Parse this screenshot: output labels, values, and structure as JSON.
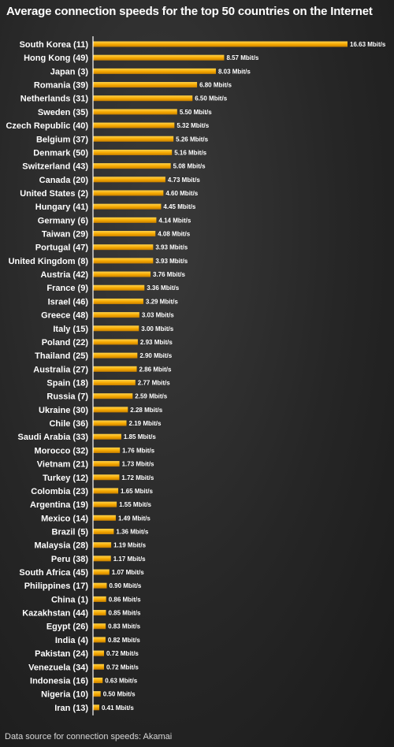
{
  "title": "Average connection speeds for the top 50 countries on the Internet",
  "source": "Data source for connection speeds: Akamai",
  "colors": {
    "bar": "#f5a800",
    "bar_highlight": "#ffd24a",
    "axis": "#ffffff",
    "text": "#ffffff"
  },
  "chart_data": {
    "type": "bar",
    "orientation": "horizontal",
    "title": "Average connection speeds for the top 50 countries on the Internet",
    "unit": "Mbit/s",
    "xlim": [
      0,
      16.63
    ],
    "grid": false,
    "categories": [
      "South Korea (11)",
      "Hong Kong (49)",
      "Japan (3)",
      "Romania (39)",
      "Netherlands (31)",
      "Sweden (35)",
      "Czech Republic (40)",
      "Belgium (37)",
      "Denmark (50)",
      "Switzerland (43)",
      "Canada (20)",
      "United States (2)",
      "Hungary (41)",
      "Germany (6)",
      "Taiwan (29)",
      "Portugal (47)",
      "United Kingdom (8)",
      "Austria (42)",
      "France (9)",
      "Israel (46)",
      "Greece (48)",
      "Italy (15)",
      "Poland (22)",
      "Thailand (25)",
      "Australia (27)",
      "Spain (18)",
      "Russia (7)",
      "Ukraine (30)",
      "Chile (36)",
      "Saudi Arabia (33)",
      "Morocco (32)",
      "Vietnam (21)",
      "Turkey (12)",
      "Colombia (23)",
      "Argentina (19)",
      "Mexico (14)",
      "Brazil (5)",
      "Malaysia (28)",
      "Peru (38)",
      "South Africa (45)",
      "Philippines (17)",
      "China (1)",
      "Kazakhstan (44)",
      "Egypt (26)",
      "India (4)",
      "Pakistan (24)",
      "Venezuela (34)",
      "Indonesia (16)",
      "Nigeria (10)",
      "Iran (13)"
    ],
    "values": [
      16.63,
      8.57,
      8.03,
      6.8,
      6.5,
      5.5,
      5.32,
      5.26,
      5.16,
      5.08,
      4.73,
      4.6,
      4.45,
      4.14,
      4.08,
      3.93,
      3.93,
      3.76,
      3.36,
      3.29,
      3.03,
      3.0,
      2.93,
      2.9,
      2.86,
      2.77,
      2.59,
      2.28,
      2.19,
      1.85,
      1.76,
      1.73,
      1.72,
      1.65,
      1.55,
      1.49,
      1.36,
      1.19,
      1.17,
      1.07,
      0.9,
      0.86,
      0.85,
      0.83,
      0.82,
      0.72,
      0.72,
      0.63,
      0.5,
      0.41
    ],
    "value_labels": [
      "16.63 Mbit/s",
      "8.57 Mbit/s",
      "8.03 Mbit/s",
      "6.80 Mbit/s",
      "6.50 Mbit/s",
      "5.50 Mbit/s",
      "5.32 Mbit/s",
      "5.26 Mbit/s",
      "5.16 Mbit/s",
      "5.08 Mbit/s",
      "4.73 Mbit/s",
      "4.60 Mbit/s",
      "4.45 Mbit/s",
      "4.14 Mbit/s",
      "4.08 Mbit/s",
      "3.93 Mbit/s",
      "3.93 Mbit/s",
      "3.76 Mbit/s",
      "3.36 Mbit/s",
      "3.29 Mbit/s",
      "3.03 Mbit/s",
      "3.00 Mbit/s",
      "2.93 Mbit/s",
      "2.90 Mbit/s",
      "2.86 Mbit/s",
      "2.77 Mbit/s",
      "2.59 Mbit/s",
      "2.28 Mbit/s",
      "2.19 Mbit/s",
      "1.85 Mbit/s",
      "1.76 Mbit/s",
      "1.73 Mbit/s",
      "1.72 Mbit/s",
      "1.65 Mbit/s",
      "1.55 Mbit/s",
      "1.49 Mbit/s",
      "1.36 Mbit/s",
      "1.19 Mbit/s",
      "1.17 Mbit/s",
      "1.07 Mbit/s",
      "0.90 Mbit/s",
      "0.86 Mbit/s",
      "0.85 Mbit/s",
      "0.83 Mbit/s",
      "0.82 Mbit/s",
      "0.72 Mbit/s",
      "0.72 Mbit/s",
      "0.63 Mbit/s",
      "0.50 Mbit/s",
      "0.41 Mbit/s"
    ]
  }
}
